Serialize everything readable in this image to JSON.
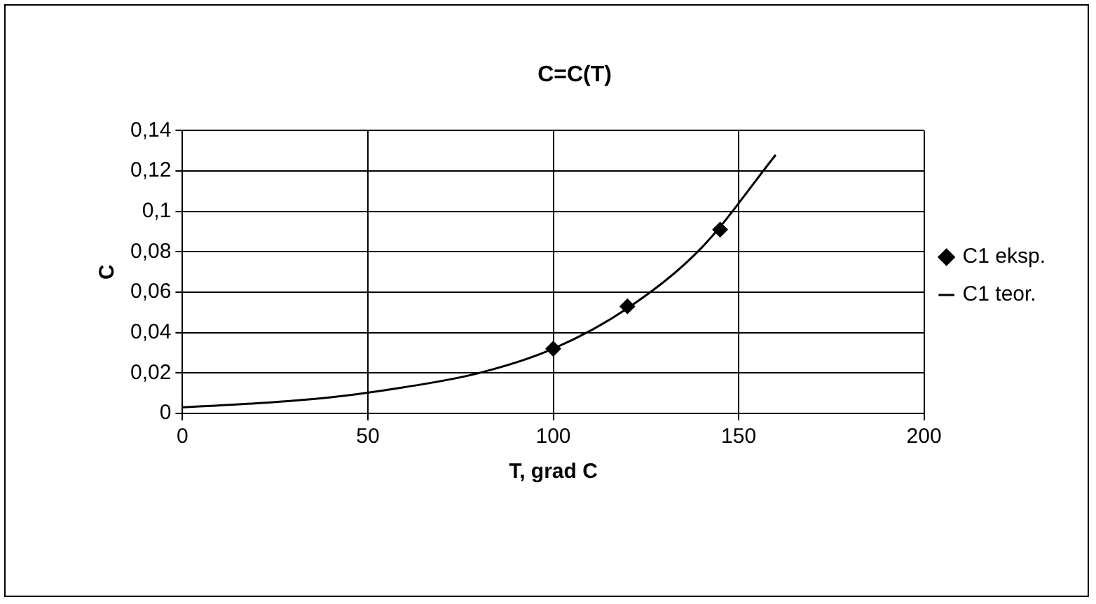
{
  "chart_data": {
    "type": "scatter",
    "title": "C=C(T)",
    "xlabel": "T, grad C",
    "ylabel": "C",
    "xlim": [
      0,
      200
    ],
    "xticks": [
      0,
      50,
      100,
      150,
      200
    ],
    "ylim": [
      0,
      0.14
    ],
    "yticks": [
      {
        "value": 0,
        "label": "0"
      },
      {
        "value": 0.02,
        "label": "0,02"
      },
      {
        "value": 0.04,
        "label": "0,04"
      },
      {
        "value": 0.06,
        "label": "0,06"
      },
      {
        "value": 0.08,
        "label": "0,08"
      },
      {
        "value": 0.1,
        "label": "0,1"
      },
      {
        "value": 0.12,
        "label": "0,12"
      },
      {
        "value": 0.14,
        "label": "0,14"
      }
    ],
    "grid": true,
    "legend": "right",
    "series": [
      {
        "name": "C1 eksp.",
        "marker": "diamond",
        "color": "#000000",
        "x": [
          100,
          120,
          145
        ],
        "values": [
          0.032,
          0.053,
          0.091
        ]
      },
      {
        "name": "C1 teor.",
        "type": "line",
        "marker": "none",
        "line_style": "solid",
        "color": "#000000",
        "x": [
          0,
          20,
          40,
          60,
          80,
          100,
          120,
          140,
          160
        ],
        "values": [
          0.003,
          0.005,
          0.008,
          0.013,
          0.02,
          0.032,
          0.052,
          0.082,
          0.128
        ]
      }
    ]
  }
}
